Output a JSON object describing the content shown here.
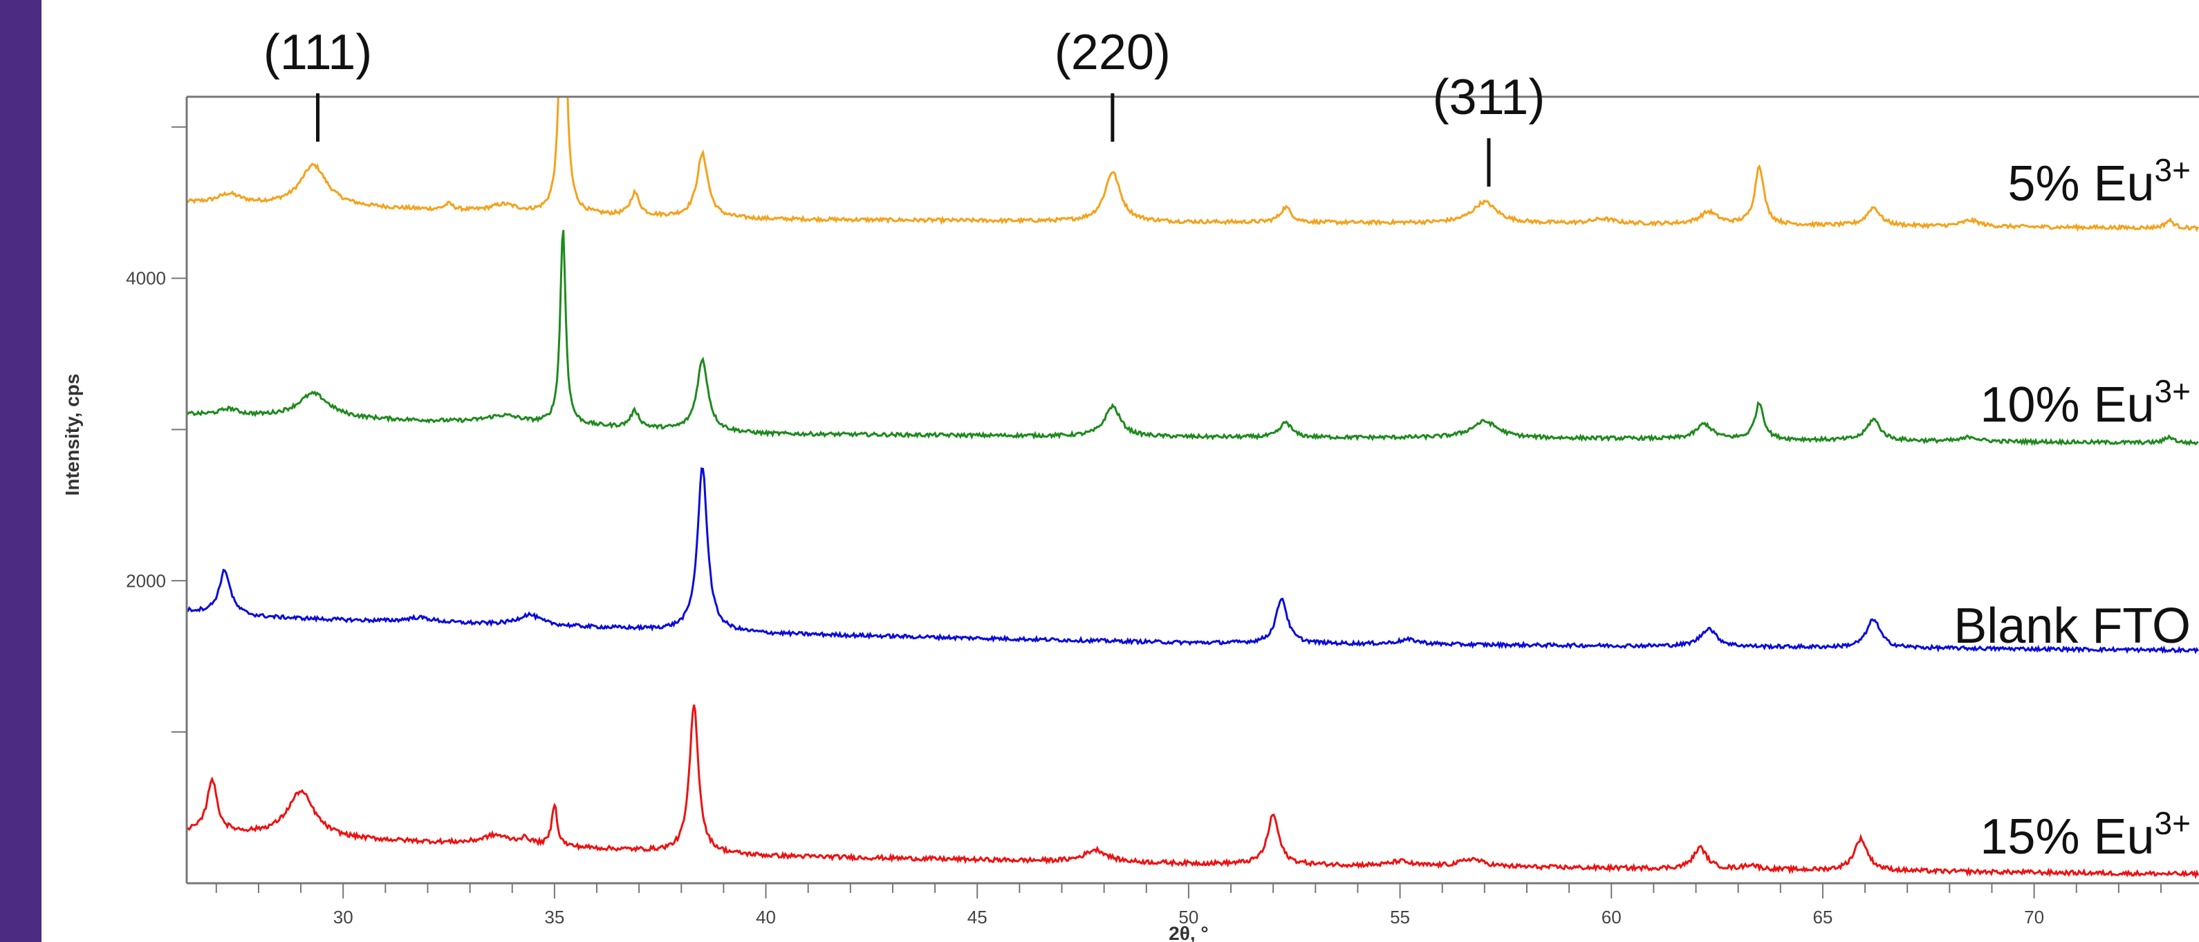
{
  "slide": {
    "accent_color": "#4b2c82"
  },
  "chart_data": {
    "type": "line",
    "title": "",
    "xlabel": "2θ, °",
    "ylabel": "Intensity, cps",
    "xlim": [
      26.3,
      73.9
    ],
    "ylim": [
      0,
      5200
    ],
    "x_ticks": [
      30,
      35,
      40,
      45,
      50,
      55,
      60,
      65,
      70
    ],
    "y_ticks": [
      4000,
      2000
    ],
    "grid": false,
    "peak_labels": [
      {
        "text": "(111)",
        "x": 29.4
      },
      {
        "text": "(220)",
        "x": 48.2
      },
      {
        "text": "(311)",
        "x": 57.1
      }
    ],
    "series": [
      {
        "name": "5% Eu3+",
        "label_text": "5% Eu",
        "label_sup": "3+",
        "color": "#f4a21c",
        "baseline": [
          [
            26.3,
            4500
          ],
          [
            30,
            4470
          ],
          [
            35,
            4420
          ],
          [
            40,
            4390
          ],
          [
            50,
            4370
          ],
          [
            60,
            4360
          ],
          [
            73.9,
            4330
          ]
        ],
        "peaks": [
          [
            27.3,
            60,
            0.5
          ],
          [
            29.3,
            270,
            0.6
          ],
          [
            32.5,
            40,
            0.2
          ],
          [
            33.8,
            50,
            0.6
          ],
          [
            35.2,
            2400,
            0.12
          ],
          [
            36.9,
            150,
            0.2
          ],
          [
            38.5,
            420,
            0.25
          ],
          [
            48.2,
            330,
            0.35
          ],
          [
            52.3,
            100,
            0.25
          ],
          [
            57.0,
            140,
            0.55
          ],
          [
            59.8,
            30,
            0.5
          ],
          [
            62.3,
            80,
            0.4
          ],
          [
            63.5,
            390,
            0.2
          ],
          [
            66.2,
            120,
            0.3
          ],
          [
            68.5,
            40,
            0.4
          ],
          [
            73.2,
            50,
            0.2
          ]
        ],
        "noise": 12
      },
      {
        "name": "10% Eu3+",
        "label_text": "10% Eu",
        "label_sup": "3+",
        "color": "#1e8a1e",
        "baseline": [
          [
            26.3,
            3100
          ],
          [
            30,
            3070
          ],
          [
            35,
            3030
          ],
          [
            40,
            2970
          ],
          [
            50,
            2950
          ],
          [
            60,
            2940
          ],
          [
            73.9,
            2910
          ]
        ],
        "peaks": [
          [
            27.3,
            40,
            0.4
          ],
          [
            29.3,
            160,
            0.7
          ],
          [
            33.8,
            50,
            0.8
          ],
          [
            35.2,
            1300,
            0.12
          ],
          [
            36.9,
            110,
            0.2
          ],
          [
            38.5,
            470,
            0.25
          ],
          [
            48.2,
            200,
            0.35
          ],
          [
            52.3,
            100,
            0.25
          ],
          [
            57.0,
            110,
            0.6
          ],
          [
            62.2,
            100,
            0.35
          ],
          [
            63.5,
            240,
            0.2
          ],
          [
            66.2,
            140,
            0.3
          ],
          [
            68.5,
            30,
            0.3
          ],
          [
            73.2,
            40,
            0.2
          ]
        ],
        "noise": 12
      },
      {
        "name": "Blank FTO",
        "label_text": "Blank FTO",
        "label_sup": "",
        "color": "#0b0bdc",
        "baseline": [
          [
            26.3,
            1800
          ],
          [
            28,
            1760
          ],
          [
            30,
            1740
          ],
          [
            35,
            1700
          ],
          [
            40,
            1650
          ],
          [
            50,
            1590
          ],
          [
            60,
            1570
          ],
          [
            73.9,
            1540
          ]
        ],
        "peaks": [
          [
            27.2,
            290,
            0.25
          ],
          [
            31.8,
            30,
            0.6
          ],
          [
            34.4,
            70,
            0.5
          ],
          [
            38.5,
            1090,
            0.22
          ],
          [
            52.2,
            300,
            0.25
          ],
          [
            55.2,
            30,
            0.5
          ],
          [
            62.3,
            120,
            0.35
          ],
          [
            66.2,
            190,
            0.3
          ]
        ],
        "noise": 12
      },
      {
        "name": "15% Eu3+",
        "label_text": "15% Eu",
        "label_sup": "3+",
        "color": "#ee1111",
        "baseline": [
          [
            26.3,
            340
          ],
          [
            28,
            320
          ],
          [
            30,
            290
          ],
          [
            33,
            260
          ],
          [
            35,
            240
          ],
          [
            40,
            180
          ],
          [
            50,
            130
          ],
          [
            60,
            100
          ],
          [
            73.9,
            60
          ]
        ],
        "peaks": [
          [
            26.9,
            350,
            0.22
          ],
          [
            29.0,
            300,
            0.6
          ],
          [
            33.6,
            60,
            0.6
          ],
          [
            34.3,
            40,
            0.3
          ],
          [
            35.0,
            280,
            0.12
          ],
          [
            38.3,
            980,
            0.2
          ],
          [
            47.8,
            80,
            0.5
          ],
          [
            52.0,
            330,
            0.25
          ],
          [
            55.0,
            30,
            0.4
          ],
          [
            56.7,
            50,
            0.5
          ],
          [
            62.1,
            140,
            0.3
          ],
          [
            63.3,
            30,
            0.3
          ],
          [
            65.9,
            210,
            0.3
          ]
        ],
        "noise": 14
      }
    ]
  }
}
